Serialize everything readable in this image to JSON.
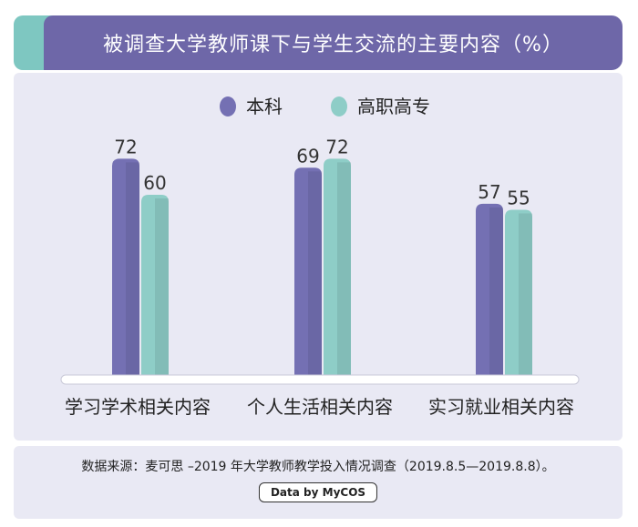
{
  "title": "被调查大学教师课下与学生交流的主要内容（%）",
  "colors": {
    "title_bg": "#6e67a8",
    "accent": "#7ec7c1",
    "panel_bg": "#e9e9f4",
    "series1": "#7470b3",
    "series2": "#8ecdc7"
  },
  "chart_data": {
    "type": "bar",
    "categories": [
      "学习学术相关内容",
      "个人生活相关内容",
      "实习就业相关内容"
    ],
    "series": [
      {
        "name": "本科",
        "values": [
          72,
          69,
          57
        ]
      },
      {
        "name": "高职高专",
        "values": [
          60,
          72,
          55
        ]
      }
    ],
    "ylim": [
      0,
      100
    ],
    "legend": "top-center",
    "grid": false
  },
  "source": "数据来源：麦可思 –2019 年大学教师教学投入情况调查（2019.8.5—2019.8.8）。",
  "logo_text": "Data by MyCOS"
}
